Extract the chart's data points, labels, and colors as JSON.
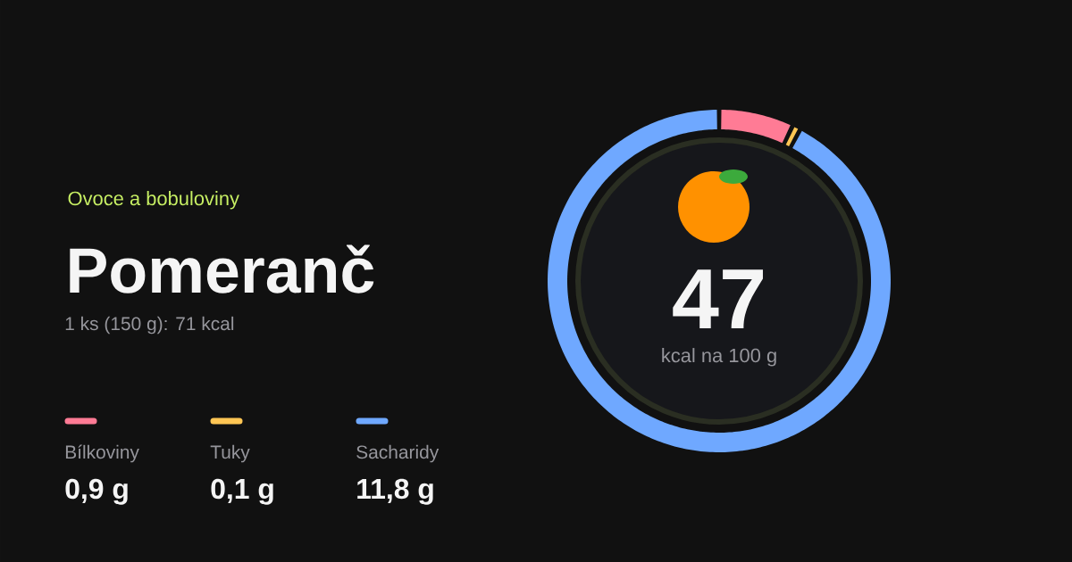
{
  "chart_data": {
    "type": "donut",
    "title": "Pomeranč",
    "subtitle": "Ovoce a bobuloviny",
    "categories": [
      "Bílkoviny",
      "Tuky",
      "Sacharidy"
    ],
    "values": [
      0.9,
      0.1,
      11.8
    ],
    "value_labels": [
      "0,9 g",
      "0,1 g",
      "11,8 g"
    ],
    "colors": [
      "#ff7b95",
      "#ffc654",
      "#6fa8ff"
    ],
    "legend": "bottom left",
    "annotations": [
      "1 ks (150 g): 71 kcal",
      "47",
      "kcal na 100 g"
    ]
  }
}
